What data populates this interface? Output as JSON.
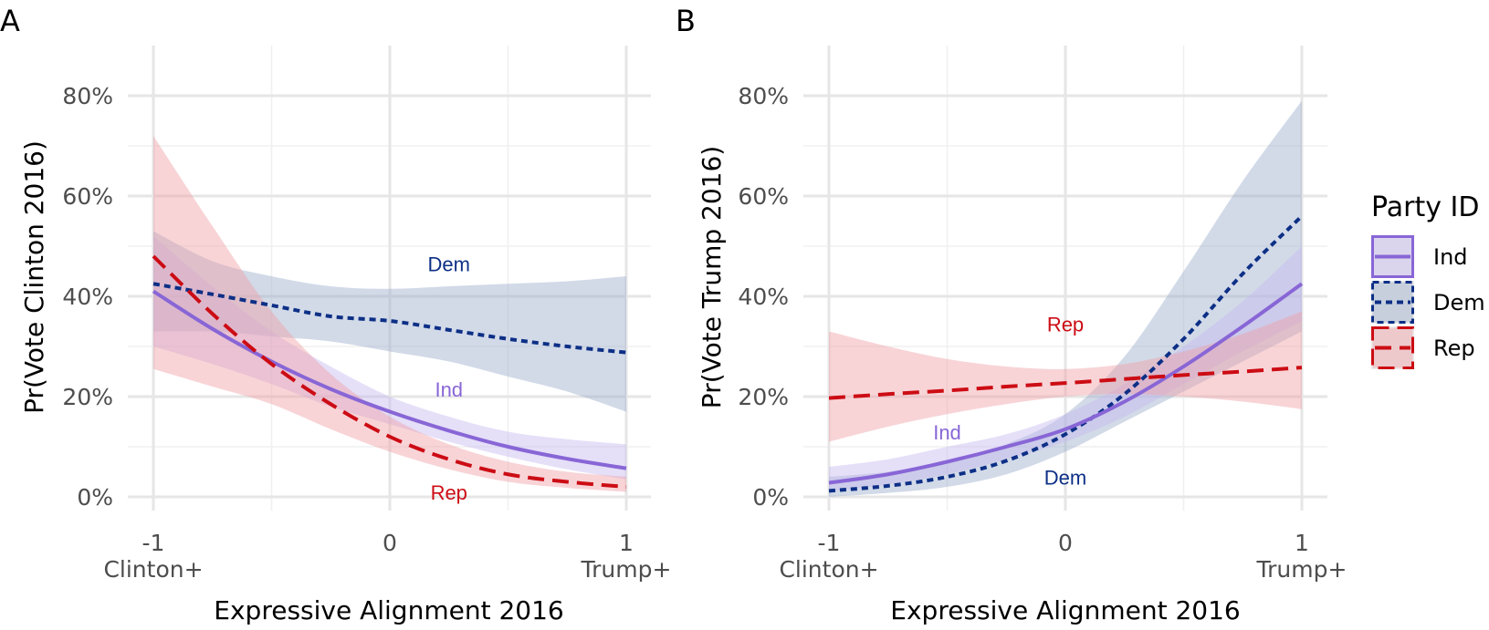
{
  "legend": {
    "title": "Party ID",
    "entries": [
      {
        "key": "Ind",
        "label": "Ind"
      },
      {
        "key": "Dem",
        "label": "Dem"
      },
      {
        "key": "Rep",
        "label": "Rep"
      }
    ]
  },
  "series_style": {
    "Ind": {
      "color": "#8866d6",
      "fill": "#c5b8f0",
      "dash": "solid"
    },
    "Dem": {
      "color": "#0d2f86",
      "fill": "#9cadcc",
      "dash": "dotted"
    },
    "Rep": {
      "color": "#cc0c14",
      "fill": "#f0a0a6",
      "dash": "dashed"
    }
  },
  "chart_data": [
    {
      "panel": "A",
      "type": "line",
      "xlabel": "Expressive Alignment 2016",
      "ylabel": "Pr(Vote Clinton 2016)",
      "xlim": [
        -1.1,
        1.1
      ],
      "ylim": [
        -0.04,
        0.89
      ],
      "x_ticks": [
        {
          "value": -1,
          "label": "-1",
          "sub": "Clinton+"
        },
        {
          "value": 0,
          "label": "0",
          "sub": ""
        },
        {
          "value": 1,
          "label": "1",
          "sub": "Trump+"
        }
      ],
      "y_ticks": [
        {
          "value": 0,
          "label": "0%"
        },
        {
          "value": 0.2,
          "label": "20%"
        },
        {
          "value": 0.4,
          "label": "40%"
        },
        {
          "value": 0.6,
          "label": "60%"
        },
        {
          "value": 0.8,
          "label": "80%"
        }
      ],
      "grid": true,
      "x": [
        -1,
        -0.75,
        -0.5,
        -0.25,
        0,
        0.25,
        0.5,
        0.75,
        1
      ],
      "series": [
        {
          "name": "Dem",
          "values": [
            0.425,
            0.404,
            0.382,
            0.36,
            0.351,
            0.333,
            0.315,
            0.3,
            0.288
          ],
          "lower": [
            0.33,
            0.33,
            0.32,
            0.31,
            0.29,
            0.27,
            0.24,
            0.21,
            0.17
          ],
          "upper": [
            0.53,
            0.47,
            0.44,
            0.42,
            0.415,
            0.42,
            0.425,
            0.43,
            0.44
          ]
        },
        {
          "name": "Ind",
          "values": [
            0.41,
            0.335,
            0.27,
            0.215,
            0.17,
            0.132,
            0.1,
            0.076,
            0.057
          ],
          "lower": [
            0.3,
            0.265,
            0.225,
            0.18,
            0.145,
            0.11,
            0.08,
            0.055,
            0.035
          ],
          "upper": [
            0.52,
            0.42,
            0.33,
            0.26,
            0.2,
            0.16,
            0.13,
            0.115,
            0.105
          ]
        },
        {
          "name": "Rep",
          "values": [
            0.48,
            0.365,
            0.265,
            0.185,
            0.12,
            0.075,
            0.045,
            0.03,
            0.02
          ],
          "lower": [
            0.255,
            0.22,
            0.185,
            0.135,
            0.09,
            0.055,
            0.03,
            0.018,
            0.01
          ],
          "upper": [
            0.72,
            0.54,
            0.37,
            0.245,
            0.16,
            0.105,
            0.07,
            0.05,
            0.04
          ]
        }
      ],
      "annotations": [
        {
          "text": "Dem",
          "series": "Dem",
          "x": 0.25,
          "y": 0.45
        },
        {
          "text": "Ind",
          "series": "Ind",
          "x": 0.25,
          "y": 0.2
        },
        {
          "text": "Rep",
          "series": "Rep",
          "x": 0.25,
          "y": -0.005
        }
      ]
    },
    {
      "panel": "B",
      "type": "line",
      "xlabel": "Expressive Alignment 2016",
      "ylabel": "Pr(Vote Trump 2016)",
      "xlim": [
        -1.1,
        1.1
      ],
      "ylim": [
        -0.04,
        0.89
      ],
      "x_ticks": [
        {
          "value": -1,
          "label": "-1",
          "sub": "Clinton+"
        },
        {
          "value": 0,
          "label": "0",
          "sub": ""
        },
        {
          "value": 1,
          "label": "1",
          "sub": "Trump+"
        }
      ],
      "y_ticks": [
        {
          "value": 0,
          "label": "0%"
        },
        {
          "value": 0.2,
          "label": "20%"
        },
        {
          "value": 0.4,
          "label": "40%"
        },
        {
          "value": 0.6,
          "label": "60%"
        },
        {
          "value": 0.8,
          "label": "80%"
        }
      ],
      "grid": true,
      "x": [
        -1,
        -0.75,
        -0.5,
        -0.25,
        0,
        0.25,
        0.5,
        0.75,
        1
      ],
      "series": [
        {
          "name": "Dem",
          "values": [
            0.012,
            0.022,
            0.04,
            0.072,
            0.125,
            0.205,
            0.315,
            0.445,
            0.56
          ],
          "lower": [
            0.0,
            0.008,
            0.02,
            0.045,
            0.09,
            0.15,
            0.21,
            0.27,
            0.33
          ],
          "upper": [
            0.04,
            0.05,
            0.07,
            0.105,
            0.165,
            0.28,
            0.45,
            0.63,
            0.79
          ]
        },
        {
          "name": "Ind",
          "values": [
            0.028,
            0.045,
            0.07,
            0.1,
            0.135,
            0.19,
            0.26,
            0.34,
            0.425
          ],
          "lower": [
            0.01,
            0.025,
            0.045,
            0.075,
            0.11,
            0.16,
            0.225,
            0.29,
            0.35
          ],
          "upper": [
            0.06,
            0.075,
            0.1,
            0.125,
            0.165,
            0.225,
            0.3,
            0.39,
            0.5
          ]
        },
        {
          "name": "Rep",
          "values": [
            0.197,
            0.205,
            0.212,
            0.22,
            0.227,
            0.235,
            0.243,
            0.25,
            0.258
          ],
          "lower": [
            0.11,
            0.14,
            0.165,
            0.185,
            0.2,
            0.205,
            0.2,
            0.19,
            0.175
          ],
          "upper": [
            0.33,
            0.3,
            0.275,
            0.26,
            0.255,
            0.265,
            0.29,
            0.325,
            0.37
          ]
        }
      ],
      "annotations": [
        {
          "text": "Rep",
          "series": "Rep",
          "x": 0.0,
          "y": 0.33
        },
        {
          "text": "Ind",
          "series": "Ind",
          "x": -0.5,
          "y": 0.115
        },
        {
          "text": "Dem",
          "series": "Dem",
          "x": 0.0,
          "y": 0.025
        }
      ]
    }
  ]
}
